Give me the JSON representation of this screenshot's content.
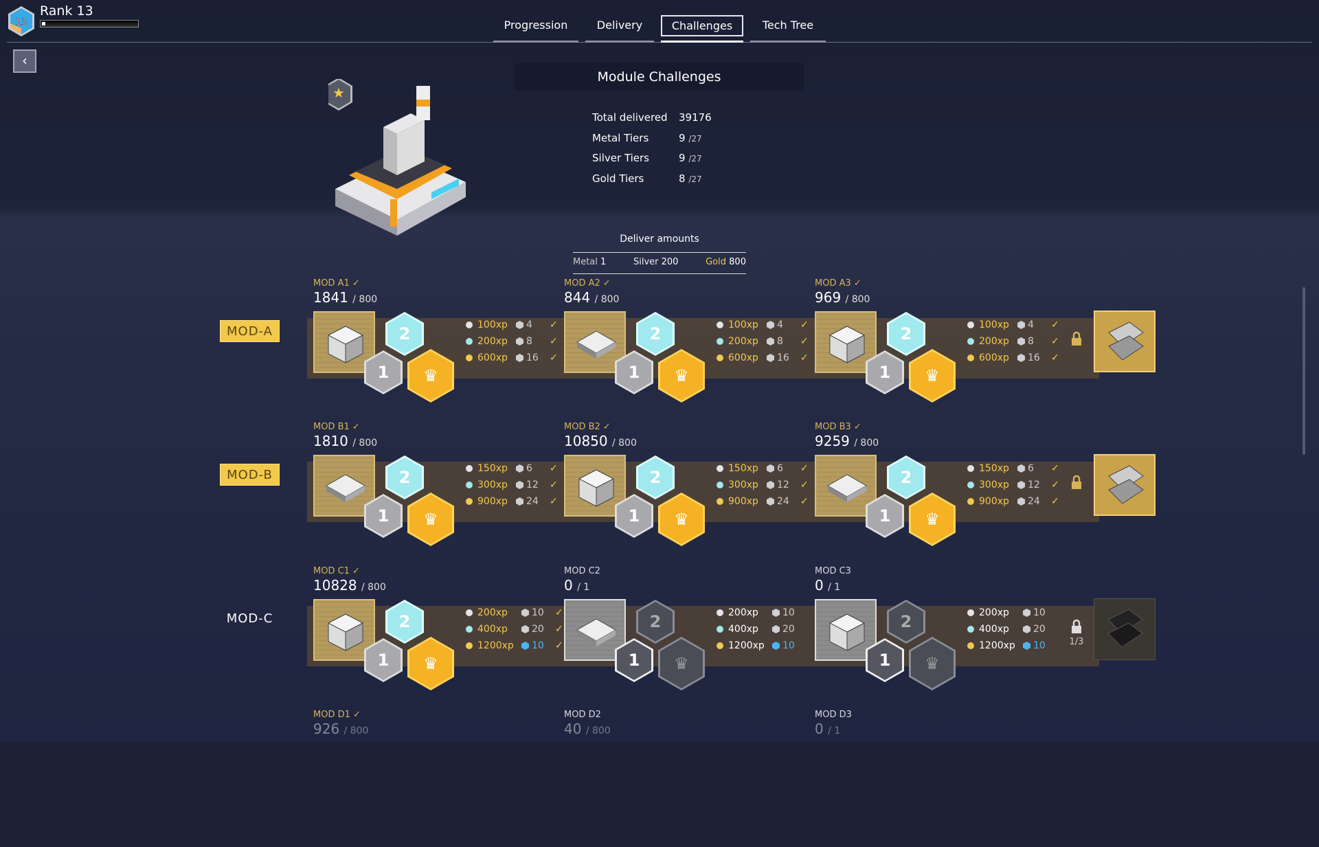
{
  "header": {
    "rank_badge": "13",
    "rank_label": "Rank 13",
    "rank_progress": 0.03
  },
  "tabs": [
    {
      "label": "Progression",
      "active": false
    },
    {
      "label": "Delivery",
      "active": false
    },
    {
      "label": "Challenges",
      "active": true
    },
    {
      "label": "Tech Tree",
      "active": false
    }
  ],
  "back_icon": "chevron-left-icon",
  "panel": {
    "title": "Module Challenges",
    "stats": [
      {
        "label": "Total delivered",
        "value": "39176",
        "max": ""
      },
      {
        "label": "Metal Tiers",
        "value": "9",
        "max": "/27"
      },
      {
        "label": "Silver Tiers",
        "value": "9",
        "max": "/27"
      },
      {
        "label": "Gold Tiers",
        "value": "8",
        "max": "/27"
      }
    ]
  },
  "deliver": {
    "title": "Deliver amounts",
    "metal_label": "Metal",
    "metal": "1",
    "silver_label": "Silver",
    "silver": "200",
    "gold_label": "Gold",
    "gold": "800"
  },
  "colors": {
    "gold": "#f2c94c",
    "cyan": "#9fe9ef",
    "silver": "#b8b8bc",
    "blue_cube": "#49b6f0"
  },
  "rows": [
    {
      "label": "MOD-A",
      "highlight": true,
      "lock_text": "",
      "reward_unlocked": true,
      "cols": [
        {
          "name": "MOD A1",
          "check": "✓",
          "value": "1841",
          "max": "/ 800",
          "state": "done",
          "tiers": [
            {
              "xp": "100xp",
              "count": "4",
              "check": "✓"
            },
            {
              "xp": "200xp",
              "count": "8",
              "check": "✓"
            },
            {
              "xp": "600xp",
              "count": "16",
              "check": "✓"
            }
          ]
        },
        {
          "name": "MOD A2",
          "check": "✓",
          "value": "844",
          "max": "/ 800",
          "state": "done",
          "tiers": [
            {
              "xp": "100xp",
              "count": "4",
              "check": "✓"
            },
            {
              "xp": "200xp",
              "count": "8",
              "check": "✓"
            },
            {
              "xp": "600xp",
              "count": "16",
              "check": "✓"
            }
          ]
        },
        {
          "name": "MOD A3",
          "check": "✓",
          "value": "969",
          "max": "/ 800",
          "state": "done",
          "tiers": [
            {
              "xp": "100xp",
              "count": "4",
              "check": "✓"
            },
            {
              "xp": "200xp",
              "count": "8",
              "check": "✓"
            },
            {
              "xp": "600xp",
              "count": "16",
              "check": "✓"
            }
          ]
        }
      ]
    },
    {
      "label": "MOD-B",
      "highlight": true,
      "lock_text": "",
      "reward_unlocked": true,
      "cols": [
        {
          "name": "MOD B1",
          "check": "✓",
          "value": "1810",
          "max": "/ 800",
          "state": "done",
          "tiers": [
            {
              "xp": "150xp",
              "count": "6",
              "check": "✓"
            },
            {
              "xp": "300xp",
              "count": "12",
              "check": "✓"
            },
            {
              "xp": "900xp",
              "count": "24",
              "check": "✓"
            }
          ]
        },
        {
          "name": "MOD B2",
          "check": "✓",
          "value": "10850",
          "max": "/ 800",
          "state": "done",
          "tiers": [
            {
              "xp": "150xp",
              "count": "6",
              "check": "✓"
            },
            {
              "xp": "300xp",
              "count": "12",
              "check": "✓"
            },
            {
              "xp": "900xp",
              "count": "24",
              "check": "✓"
            }
          ]
        },
        {
          "name": "MOD B3",
          "check": "✓",
          "value": "9259",
          "max": "/ 800",
          "state": "done",
          "tiers": [
            {
              "xp": "150xp",
              "count": "6",
              "check": "✓"
            },
            {
              "xp": "300xp",
              "count": "12",
              "check": "✓"
            },
            {
              "xp": "900xp",
              "count": "24",
              "check": "✓"
            }
          ]
        }
      ]
    },
    {
      "label": "MOD-C",
      "highlight": false,
      "lock_text": "1/3",
      "reward_unlocked": false,
      "cols": [
        {
          "name": "MOD C1",
          "check": "✓",
          "value": "10828",
          "max": "/ 800",
          "state": "done",
          "tiers": [
            {
              "xp": "200xp",
              "count": "10",
              "check": "✓"
            },
            {
              "xp": "400xp",
              "count": "20",
              "check": "✓"
            },
            {
              "xp": "1200xp",
              "count": "10",
              "check": "✓"
            }
          ]
        },
        {
          "name": "MOD C2",
          "check": "",
          "value": "0",
          "max": "/ 1",
          "state": "locked",
          "tiers": [
            {
              "xp": "200xp",
              "count": "10",
              "check": ""
            },
            {
              "xp": "400xp",
              "count": "20",
              "check": ""
            },
            {
              "xp": "1200xp",
              "count": "10",
              "check": ""
            }
          ]
        },
        {
          "name": "MOD C3",
          "check": "",
          "value": "0",
          "max": "/ 1",
          "state": "locked",
          "tiers": [
            {
              "xp": "200xp",
              "count": "10",
              "check": ""
            },
            {
              "xp": "400xp",
              "count": "20",
              "check": ""
            },
            {
              "xp": "1200xp",
              "count": "10",
              "check": ""
            }
          ]
        }
      ]
    },
    {
      "label": "",
      "highlight": false,
      "partial": true,
      "cols": [
        {
          "name": "MOD D1",
          "check": "✓",
          "value": "926",
          "max": "/ 800",
          "state": "done"
        },
        {
          "name": "MOD D2",
          "check": "",
          "value": "40",
          "max": "/ 800",
          "state": "locked"
        },
        {
          "name": "MOD D3",
          "check": "",
          "value": "0",
          "max": "/ 1",
          "state": "locked"
        }
      ]
    }
  ]
}
